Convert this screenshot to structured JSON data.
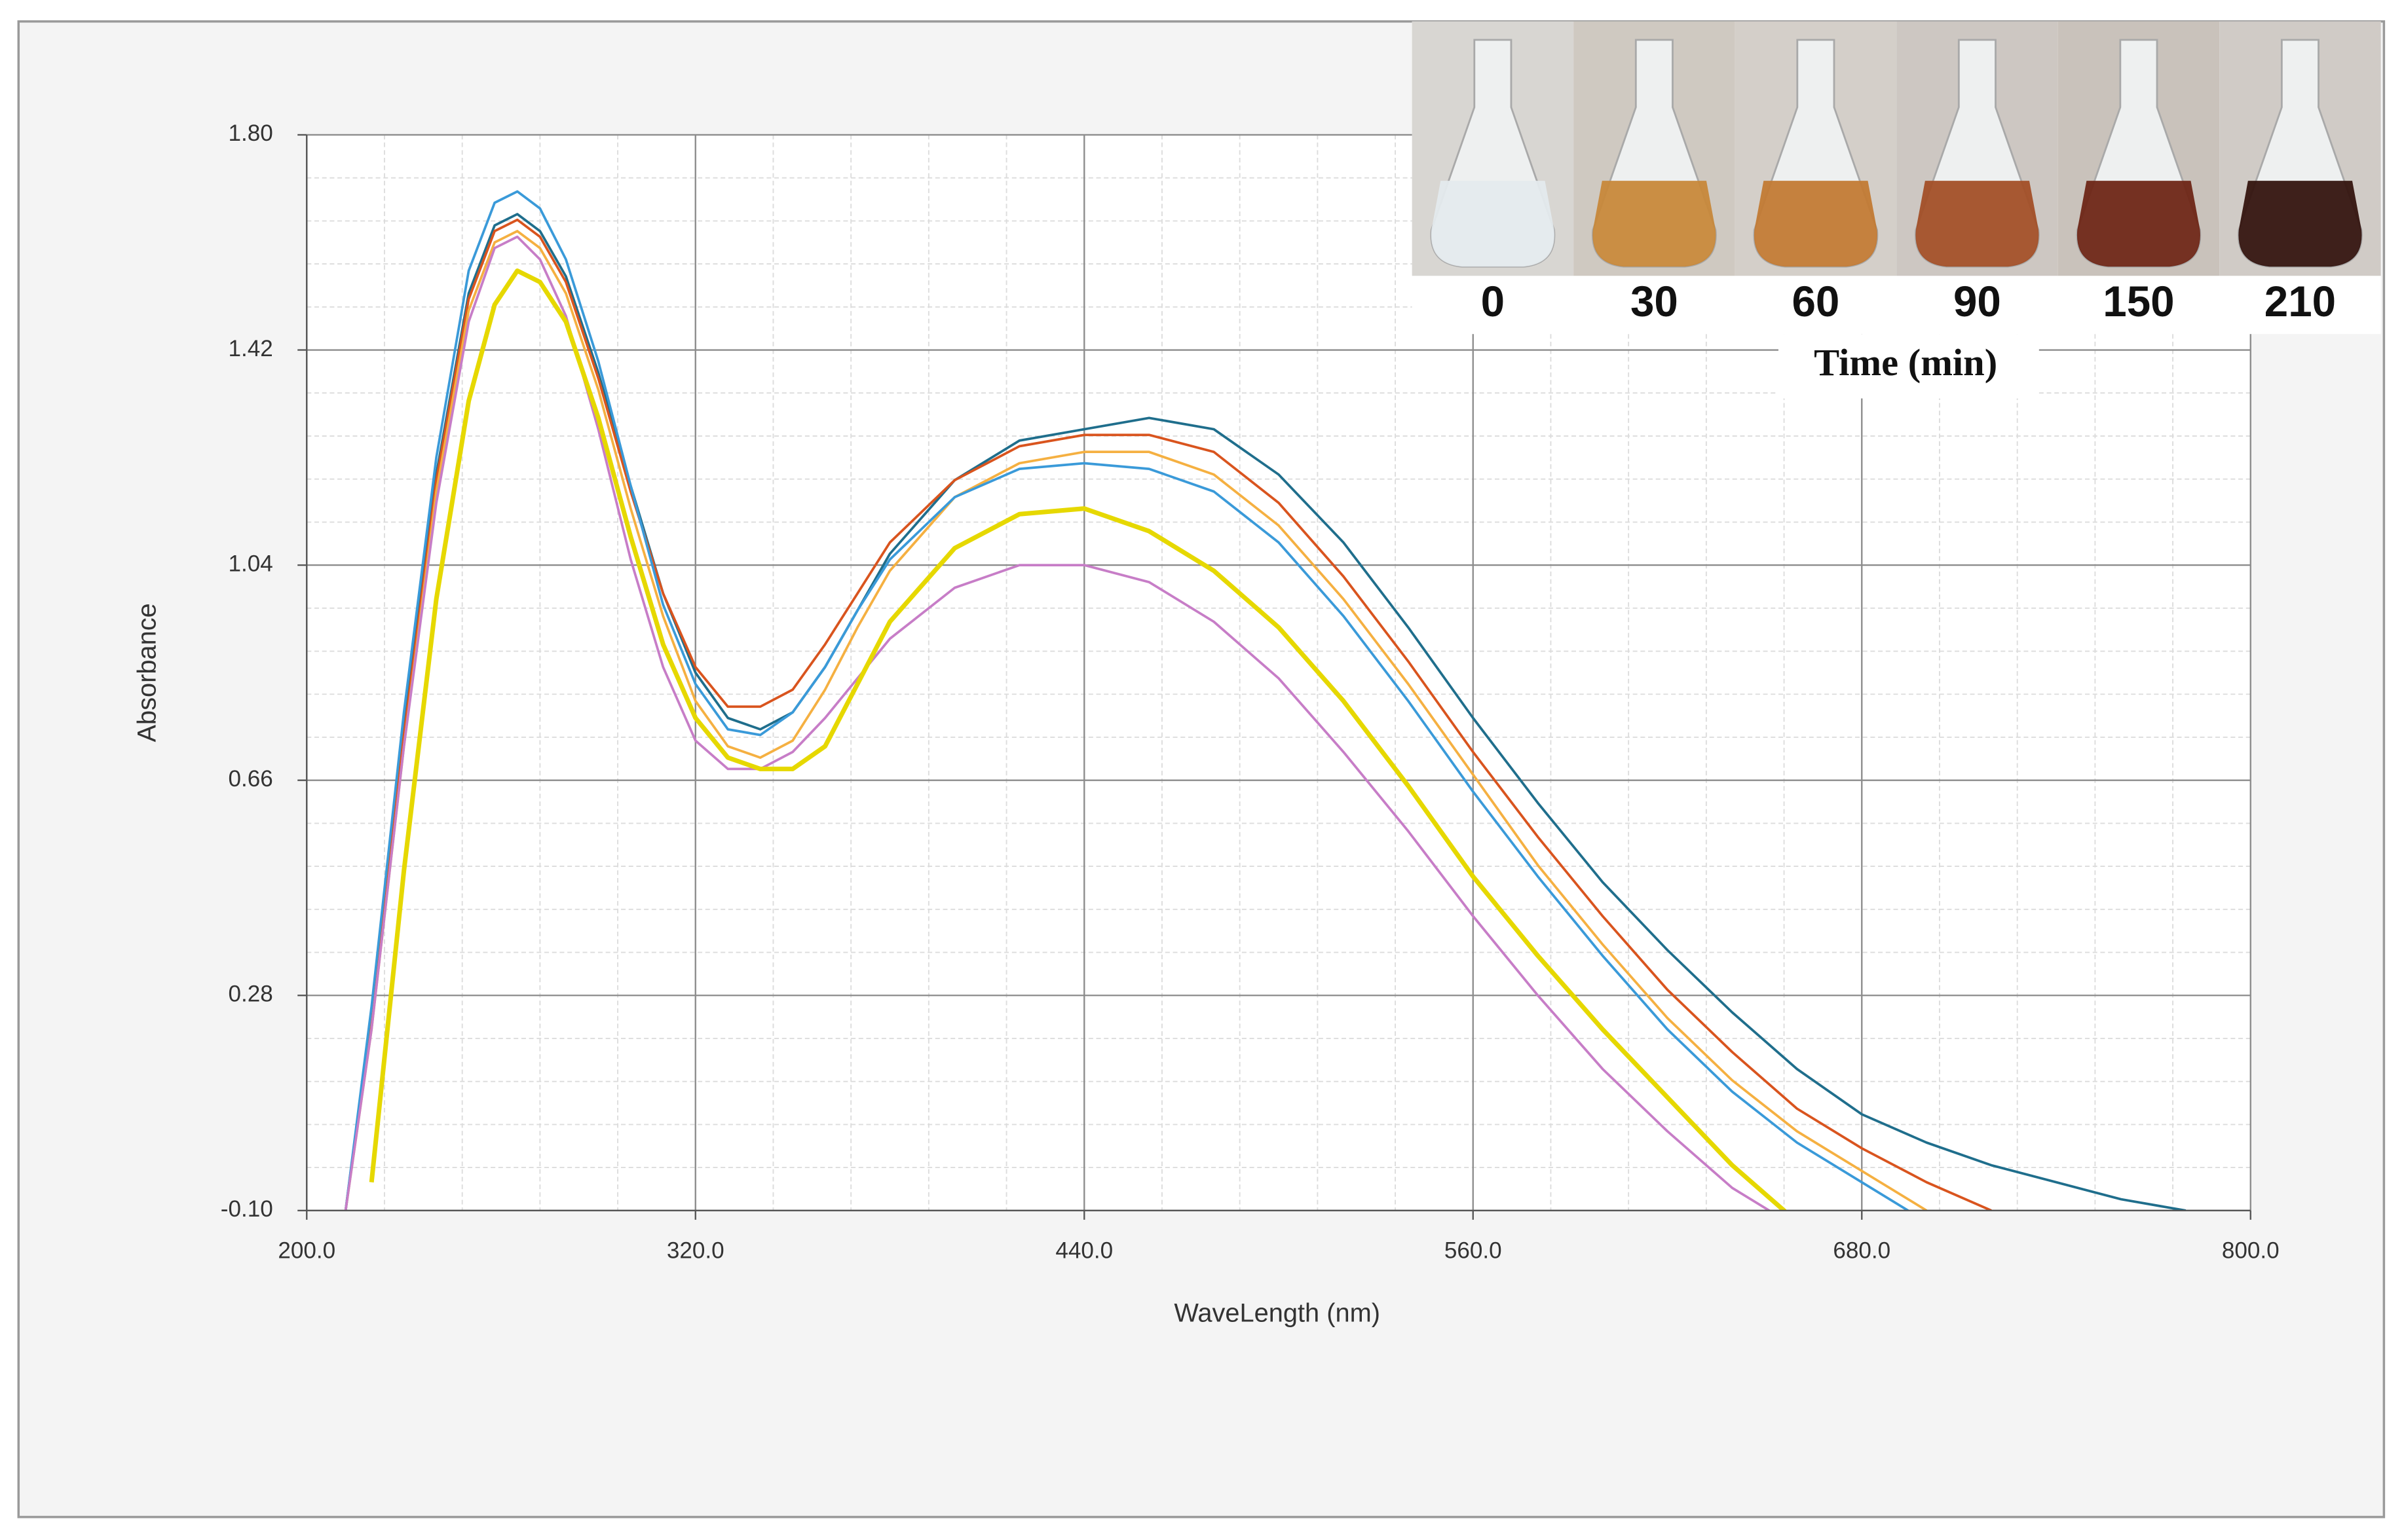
{
  "chart_data": {
    "type": "line",
    "x_label": "WaveLength (nm)",
    "y_label": "Absorbance",
    "x": [
      212,
      220,
      230,
      240,
      250,
      258,
      265,
      272,
      280,
      290,
      300,
      310,
      320,
      330,
      340,
      350,
      360,
      370,
      380,
      400,
      420,
      440,
      460,
      480,
      500,
      520,
      540,
      560,
      580,
      600,
      620,
      640,
      660,
      680,
      700,
      720,
      740,
      760,
      780
    ],
    "series": [
      {
        "color": "#1f6e8c",
        "values": [
          -0.1,
          0.25,
          0.75,
          1.2,
          1.52,
          1.64,
          1.66,
          1.63,
          1.55,
          1.38,
          1.18,
          0.99,
          0.85,
          0.77,
          0.75,
          0.78,
          0.86,
          0.96,
          1.06,
          1.19,
          1.26,
          1.28,
          1.3,
          1.28,
          1.2,
          1.08,
          0.93,
          0.77,
          0.62,
          0.48,
          0.36,
          0.25,
          0.15,
          0.07,
          0.02,
          -0.02,
          -0.05,
          -0.08,
          -0.1
        ]
      },
      {
        "color": "#d9541e",
        "values": [
          -0.1,
          0.24,
          0.74,
          1.19,
          1.51,
          1.63,
          1.65,
          1.62,
          1.54,
          1.37,
          1.17,
          0.99,
          0.86,
          0.79,
          0.79,
          0.82,
          0.9,
          0.99,
          1.08,
          1.19,
          1.25,
          1.27,
          1.27,
          1.24,
          1.15,
          1.02,
          0.87,
          0.71,
          0.56,
          0.42,
          0.29,
          0.18,
          0.08,
          0.01,
          -0.05,
          -0.1,
          null,
          null,
          null
        ]
      },
      {
        "color": "#f5b041",
        "values": [
          -0.1,
          0.22,
          0.72,
          1.17,
          1.49,
          1.61,
          1.63,
          1.6,
          1.52,
          1.35,
          1.14,
          0.95,
          0.8,
          0.72,
          0.7,
          0.73,
          0.82,
          0.93,
          1.03,
          1.16,
          1.22,
          1.24,
          1.24,
          1.2,
          1.11,
          0.98,
          0.83,
          0.67,
          0.51,
          0.37,
          0.24,
          0.13,
          0.04,
          -0.03,
          -0.1,
          null,
          null,
          null,
          null
        ]
      },
      {
        "color": "#3a9ad9",
        "values": [
          -0.1,
          0.26,
          0.78,
          1.23,
          1.56,
          1.68,
          1.7,
          1.67,
          1.58,
          1.4,
          1.18,
          0.97,
          0.83,
          0.75,
          0.74,
          0.78,
          0.86,
          0.96,
          1.05,
          1.16,
          1.21,
          1.22,
          1.21,
          1.17,
          1.08,
          0.95,
          0.8,
          0.64,
          0.49,
          0.35,
          0.22,
          0.11,
          0.02,
          -0.05,
          -0.12,
          null,
          null,
          null,
          null
        ]
      },
      {
        "color": "#c77dc7",
        "values": [
          -0.1,
          0.22,
          0.72,
          1.15,
          1.47,
          1.6,
          1.62,
          1.58,
          1.48,
          1.28,
          1.05,
          0.86,
          0.73,
          0.68,
          0.68,
          0.71,
          0.77,
          0.84,
          0.91,
          1.0,
          1.04,
          1.04,
          1.01,
          0.94,
          0.84,
          0.71,
          0.57,
          0.42,
          0.28,
          0.15,
          0.04,
          -0.06,
          -0.13,
          null,
          null,
          null,
          null,
          null,
          null
        ]
      },
      {
        "color": "#e6d800",
        "values": [
          null,
          -0.05,
          0.5,
          0.98,
          1.33,
          1.5,
          1.56,
          1.54,
          1.47,
          1.3,
          1.09,
          0.9,
          0.77,
          0.7,
          0.68,
          0.68,
          0.72,
          0.83,
          0.94,
          1.07,
          1.13,
          1.14,
          1.1,
          1.03,
          0.93,
          0.8,
          0.65,
          0.49,
          0.35,
          0.22,
          0.1,
          -0.02,
          -0.12,
          null,
          null,
          null,
          null,
          null,
          null
        ]
      }
    ],
    "xlim": [
      200,
      800
    ],
    "ylim": [
      -0.1,
      1.8
    ],
    "xticks": [
      {
        "value": 200,
        "label": "200.0"
      },
      {
        "value": 320,
        "label": "320.0"
      },
      {
        "value": 440,
        "label": "440.0"
      },
      {
        "value": 560,
        "label": "560.0"
      },
      {
        "value": 680,
        "label": "680.0"
      },
      {
        "value": 800,
        "label": "800.0"
      }
    ],
    "yticks": [
      {
        "value": -0.1,
        "label": "-0.10"
      },
      {
        "value": 0.28,
        "label": "0.28"
      },
      {
        "value": 0.66,
        "label": "0.66"
      },
      {
        "value": 1.04,
        "label": "1.04"
      },
      {
        "value": 1.42,
        "label": "1.42"
      },
      {
        "value": 1.8,
        "label": "1.80"
      }
    ],
    "xminor_ticks": [
      224,
      248,
      272,
      296,
      344,
      368,
      392,
      416,
      464,
      488,
      512,
      536,
      584,
      608,
      632,
      656,
      704,
      728,
      752,
      776
    ],
    "yminor_ticks": [
      -0.024,
      0.052,
      0.128,
      0.204,
      0.356,
      0.432,
      0.508,
      0.584,
      0.736,
      0.812,
      0.888,
      0.964,
      1.116,
      1.192,
      1.268,
      1.344,
      1.496,
      1.572,
      1.648,
      1.724
    ],
    "grid": true,
    "inset": {
      "labels": [
        0,
        30,
        60,
        90,
        150,
        210
      ],
      "title": "Time (min)"
    }
  }
}
